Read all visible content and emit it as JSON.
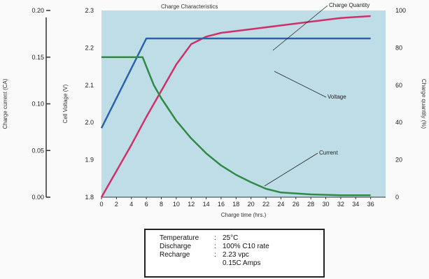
{
  "chart_data": {
    "type": "line",
    "title": "Charge Characteristics",
    "xlabel": "Charge time (hrs.)",
    "x_ticks": [
      0,
      2,
      4,
      6,
      8,
      10,
      12,
      14,
      16,
      18,
      20,
      22,
      24,
      26,
      28,
      30,
      32,
      34,
      36
    ],
    "xlim": [
      0,
      38
    ],
    "axes": {
      "current": {
        "label": "Charge current (CA)",
        "ticks": [
          "0.00",
          "0.05",
          "0.10",
          "0.15",
          "0.20"
        ],
        "range": [
          0,
          0.2
        ]
      },
      "voltage": {
        "label": "Cell Voltage (V)",
        "ticks": [
          "1.8",
          "1.9",
          "2.0",
          "2.1",
          "2.2",
          "2.3"
        ],
        "range": [
          1.8,
          2.3
        ]
      },
      "quantity": {
        "label": "Charge quantity (%)",
        "ticks": [
          "0",
          "20",
          "40",
          "60",
          "80",
          "100"
        ],
        "range": [
          0,
          100
        ]
      }
    },
    "series": [
      {
        "name": "Charge Quantity",
        "axis": "quantity",
        "color": "#d0306a",
        "x": [
          0,
          2,
          4,
          6,
          8,
          10,
          12,
          14,
          16,
          20,
          24,
          28,
          32,
          36
        ],
        "y": [
          0,
          14,
          28,
          43,
          57,
          71,
          82,
          86,
          88,
          90,
          92,
          94,
          96,
          97
        ]
      },
      {
        "name": "Voltage",
        "axis": "voltage",
        "color": "#2a63a8",
        "x": [
          0,
          4,
          6,
          8,
          12,
          16,
          20,
          24,
          28,
          32,
          36
        ],
        "y": [
          1.985,
          2.145,
          2.225,
          2.225,
          2.225,
          2.225,
          2.225,
          2.225,
          2.225,
          2.225,
          2.225
        ]
      },
      {
        "name": "Current",
        "axis": "current",
        "color": "#2f8a46",
        "x": [
          0,
          5.5,
          6,
          6.5,
          7,
          8,
          9,
          10,
          12,
          14,
          16,
          18,
          20,
          22,
          24,
          28,
          32,
          36
        ],
        "y": [
          0.15,
          0.15,
          0.14,
          0.13,
          0.12,
          0.106,
          0.094,
          0.082,
          0.063,
          0.047,
          0.034,
          0.024,
          0.016,
          0.009,
          0.005,
          0.003,
          0.002,
          0.002
        ]
      }
    ],
    "annotations": [
      "Charge Quantity",
      "Voltage",
      "Current"
    ],
    "plot_background": "#bfdde6",
    "grid": false,
    "legend": "none"
  },
  "conditions": [
    {
      "label": "Temperature",
      "value": "25°C"
    },
    {
      "label": "Discharge",
      "value": "100% C10 rate"
    },
    {
      "label": "Recharge",
      "value": "2.23 vpc"
    },
    {
      "label": "",
      "value": "0.15C Amps"
    }
  ]
}
